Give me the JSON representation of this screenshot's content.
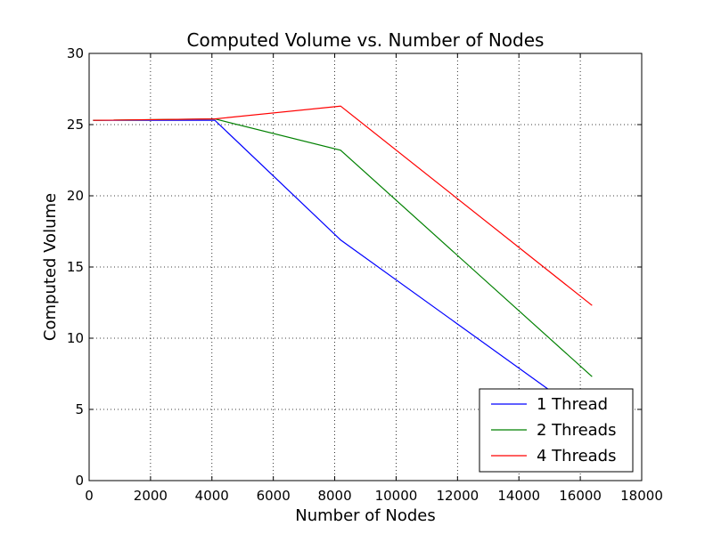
{
  "chart_data": {
    "type": "line",
    "title": "Computed Volume vs. Number of Nodes",
    "xlabel": "Number of Nodes",
    "ylabel": "Computed Volume",
    "xlim": [
      0,
      18000
    ],
    "ylim": [
      0,
      30
    ],
    "x_ticks": [
      0,
      2000,
      4000,
      6000,
      8000,
      10000,
      12000,
      14000,
      16000,
      18000
    ],
    "y_ticks": [
      0,
      5,
      10,
      15,
      20,
      25,
      30
    ],
    "grid": true,
    "legend_position": "bottom-right",
    "series": [
      {
        "name": "1 Thread",
        "color": "#0000ff",
        "x": [
          128,
          4096,
          8192,
          16384
        ],
        "y": [
          25.3,
          25.3,
          16.9,
          4.2
        ]
      },
      {
        "name": "2 Threads",
        "color": "#008000",
        "x": [
          128,
          4096,
          8192,
          16384
        ],
        "y": [
          25.3,
          25.4,
          23.2,
          7.3
        ]
      },
      {
        "name": "4 Threads",
        "color": "#ff0000",
        "x": [
          128,
          4096,
          8192,
          16384
        ],
        "y": [
          25.3,
          25.4,
          26.3,
          12.3
        ]
      }
    ]
  }
}
